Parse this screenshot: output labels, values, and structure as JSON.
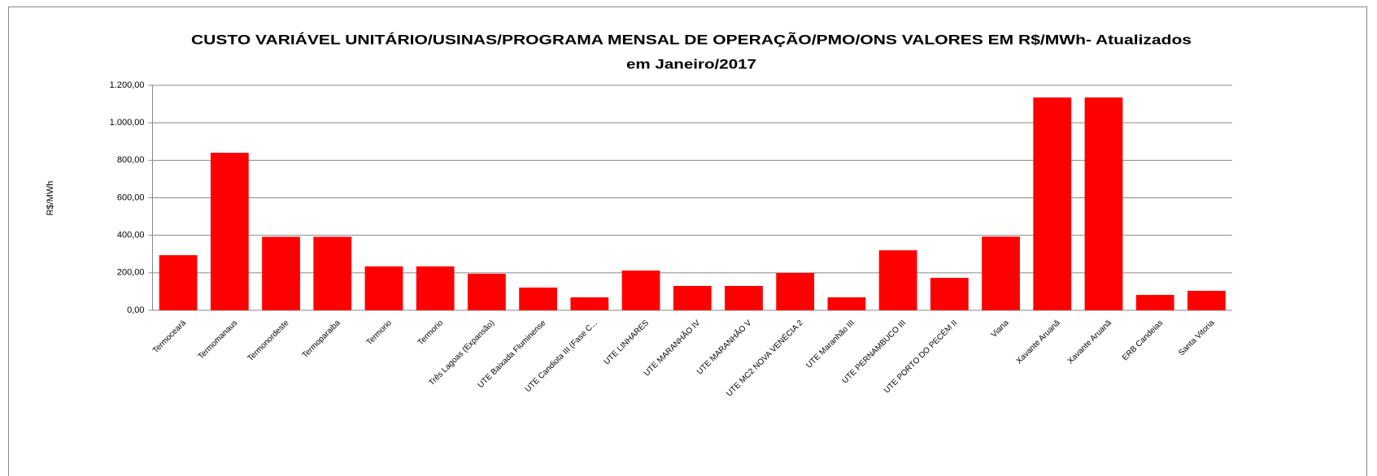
{
  "chart_data": {
    "type": "bar",
    "title": [
      "CUSTO VARIÁVEL UNITÁRIO/USINAS/PROGRAMA MENSAL DE OPERAÇÃO/PMO/ONS  VALORES EM R$/MWh- Atualizados",
      "em Janeiro/2017"
    ],
    "ylabel": "R$/MWh",
    "categories": [
      "Termoceará",
      "Termomanaus",
      "Termonordeste",
      "Termoparaiba",
      "Termorio",
      "Termorio",
      "Três Lagoas (Expansão)",
      "UTE Baixada Fluminense",
      "UTE Candiota III (Fase C...",
      "UTE LINHARES",
      "UTE MARANHÃO IV",
      "UTE MARANHÃO V",
      "UTE MC2 NOVA VENÉCIA 2",
      "UTE Maranhão III",
      "UTE PERNAMBUCO III",
      "UTE PORTO DO PECÉM II",
      "Viana",
      "Xavante Aruanã",
      "Xavante Aruanã",
      "ERB Candeias",
      "Santa Vitoria"
    ],
    "values": [
      294,
      840,
      392,
      392,
      234,
      234,
      195,
      121,
      69,
      212,
      130,
      130,
      199,
      69,
      320,
      173,
      393,
      1135,
      1135,
      82,
      104
    ],
    "color": "#ff0000",
    "ylim": [
      0,
      1200
    ],
    "yticks": [
      {
        "value": 0,
        "label": "0,00"
      },
      {
        "value": 200,
        "label": "200,00"
      },
      {
        "value": 400,
        "label": "400,00"
      },
      {
        "value": 600,
        "label": "600,00"
      },
      {
        "value": 800,
        "label": "800,00"
      },
      {
        "value": 1000,
        "label": "1.000,00"
      },
      {
        "value": 1200,
        "label": "1.200,00"
      }
    ],
    "grid": true
  }
}
